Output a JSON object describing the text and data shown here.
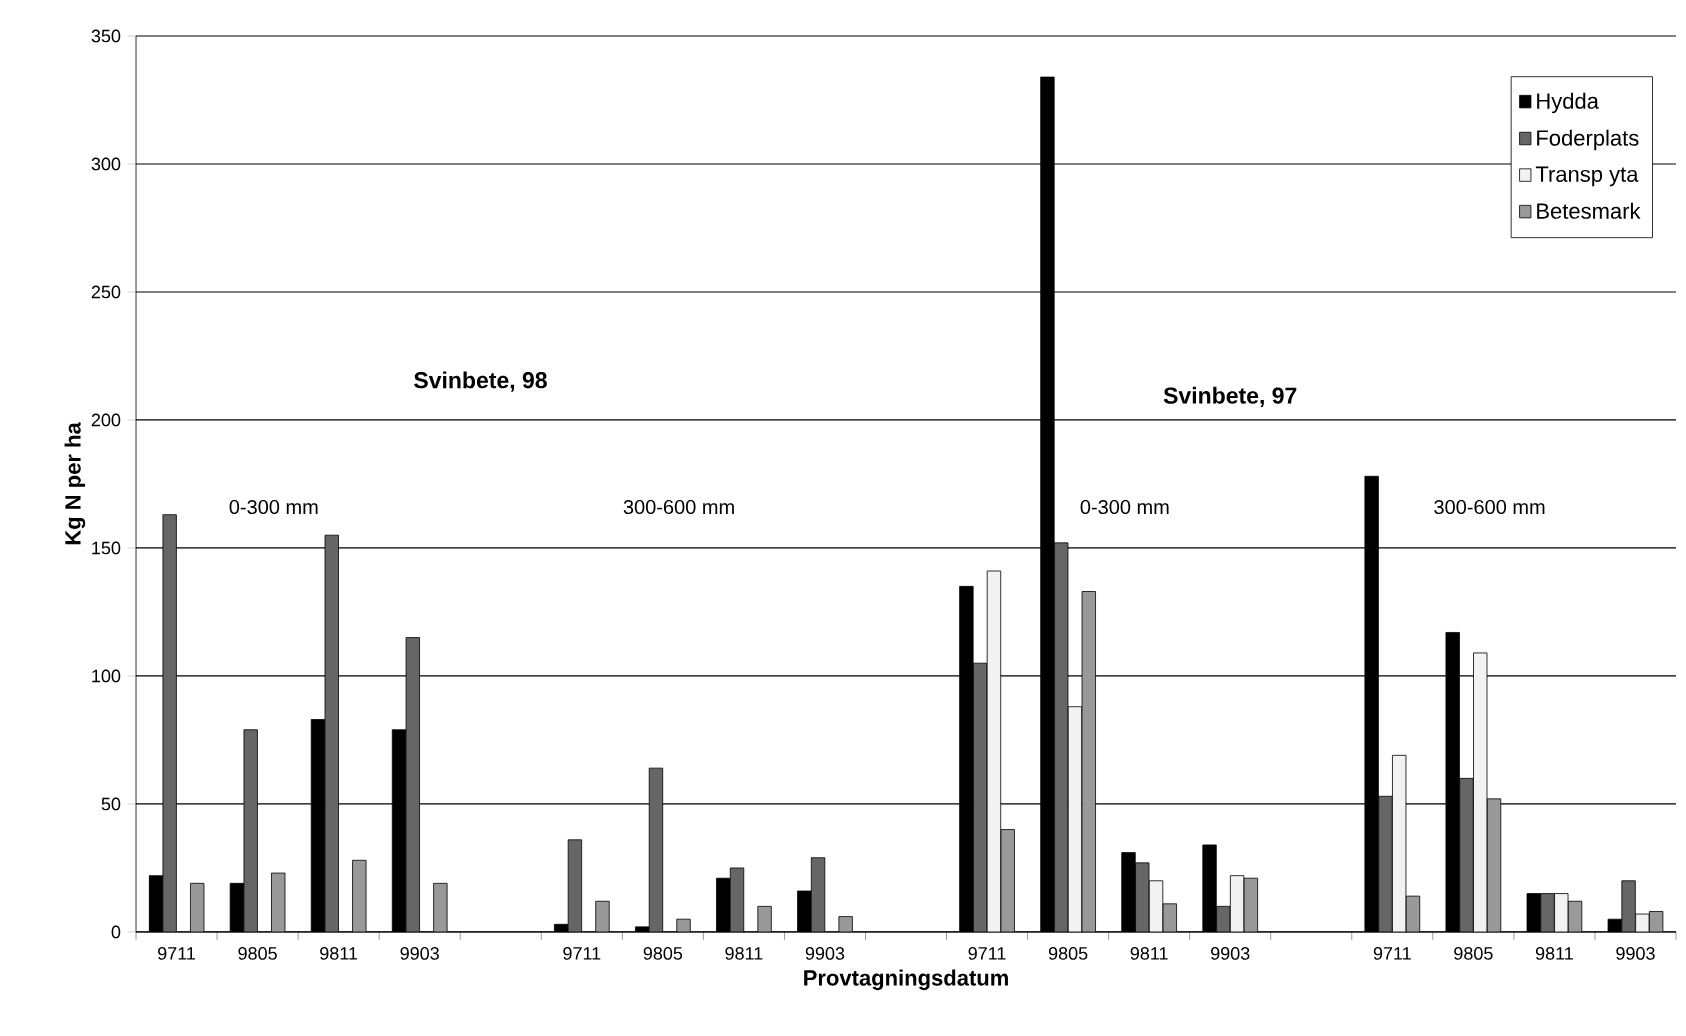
{
  "chart_data": {
    "type": "bar",
    "xlabel": "Provtagningsdatum",
    "ylabel": "Kg N per ha",
    "categories": [
      "9711",
      "9805",
      "9811",
      "9903",
      null,
      "9711",
      "9805",
      "9811",
      "9903",
      null,
      "9711",
      "9805",
      "9811",
      "9903",
      null,
      "9711",
      "9805",
      "9811",
      "9903"
    ],
    "series": [
      {
        "name": "Hydda",
        "color": "#000000",
        "values": [
          22,
          19,
          83,
          79,
          null,
          3,
          2,
          21,
          16,
          null,
          135,
          334,
          31,
          34,
          null,
          178,
          117,
          15,
          5
        ]
      },
      {
        "name": "Foderplats",
        "color": "#666666",
        "values": [
          163,
          79,
          155,
          115,
          null,
          36,
          64,
          25,
          29,
          null,
          105,
          152,
          27,
          10,
          null,
          53,
          60,
          15,
          20
        ]
      },
      {
        "name": "Transp yta",
        "color": "#f2f2f2",
        "values": [
          null,
          null,
          null,
          null,
          null,
          null,
          null,
          null,
          null,
          null,
          141,
          88,
          20,
          22,
          null,
          69,
          109,
          15,
          7
        ]
      },
      {
        "name": "Betesmark",
        "color": "#999999",
        "values": [
          19,
          23,
          28,
          19,
          null,
          12,
          5,
          10,
          6,
          null,
          40,
          133,
          11,
          21,
          null,
          14,
          52,
          12,
          8
        ]
      }
    ],
    "ylim": [
      0,
      350
    ],
    "yticks": [
      0,
      50,
      100,
      150,
      200,
      250,
      300,
      350
    ],
    "grid": "y",
    "legend": "top right",
    "annotations": [
      "Svinbete, 98",
      "0-300 mm",
      "300-600 mm",
      "Svinbete, 97",
      "0-300 mm",
      "300-600 mm"
    ]
  }
}
